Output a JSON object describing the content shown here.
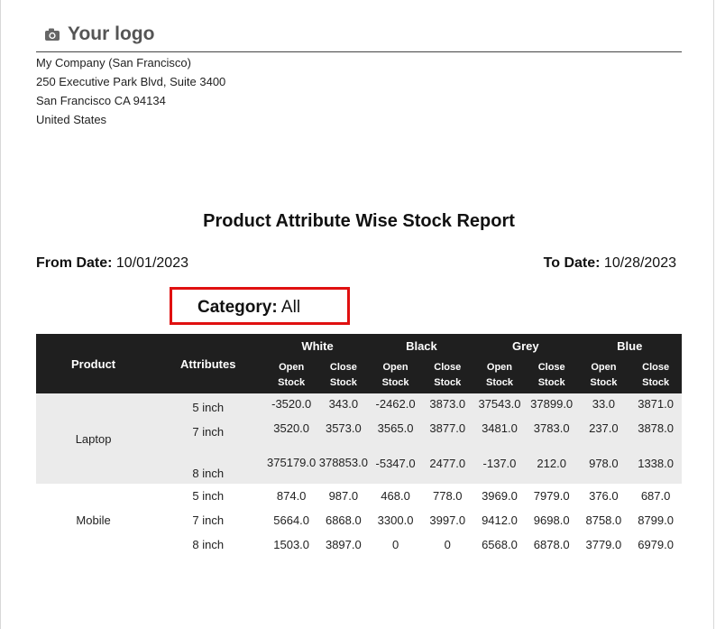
{
  "header": {
    "logo_text": "Your logo",
    "logo_icon": "camera-icon",
    "company": {
      "name": "My Company (San Francisco)",
      "street": "250 Executive Park Blvd, Suite 3400",
      "city_line": "San Francisco CA 94134",
      "country": "United States"
    }
  },
  "report": {
    "title": "Product Attribute Wise Stock Report",
    "from_label": "From Date:",
    "from_value": "10/01/2023",
    "to_label": "To Date:",
    "to_value": "10/28/2023",
    "category_label": "Category:",
    "category_value": "All",
    "highlight_color": "#e01010"
  },
  "table": {
    "product_header": "Product",
    "attributes_header": "Attributes",
    "colors": [
      "White",
      "Black",
      "Grey",
      "Blue"
    ],
    "open_label": "Open\nStock",
    "close_label": "Close\nStock",
    "open_line1": "Open",
    "close_line1": "Close",
    "stock_line2": "Stock",
    "products": [
      {
        "name": "Laptop",
        "rows": [
          {
            "attr": "5 inch",
            "values": [
              "-3520.0",
              "343.0",
              "-2462.0",
              "3873.0",
              "37543.0",
              "37899.0",
              "33.0",
              "3871.0"
            ]
          },
          {
            "attr": "7 inch",
            "values": [
              "3520.0",
              "3573.0",
              "3565.0",
              "3877.0",
              "3481.0",
              "3783.0",
              "237.0",
              "3878.0"
            ]
          },
          {
            "attr": "8 inch",
            "values": [
              "375179.0",
              "378853.0",
              "-5347.0",
              "2477.0",
              "-137.0",
              "212.0",
              "978.0",
              "1338.0"
            ]
          }
        ]
      },
      {
        "name": "Mobile",
        "rows": [
          {
            "attr": "5 inch",
            "values": [
              "874.0",
              "987.0",
              "468.0",
              "778.0",
              "3969.0",
              "7979.0",
              "376.0",
              "687.0"
            ]
          },
          {
            "attr": "7 inch",
            "values": [
              "5664.0",
              "6868.0",
              "3300.0",
              "3997.0",
              "9412.0",
              "9698.0",
              "8758.0",
              "8799.0"
            ]
          },
          {
            "attr": "8 inch",
            "values": [
              "1503.0",
              "3897.0",
              "0",
              "0",
              "6568.0",
              "6878.0",
              "3779.0",
              "6979.0"
            ]
          }
        ]
      }
    ]
  }
}
